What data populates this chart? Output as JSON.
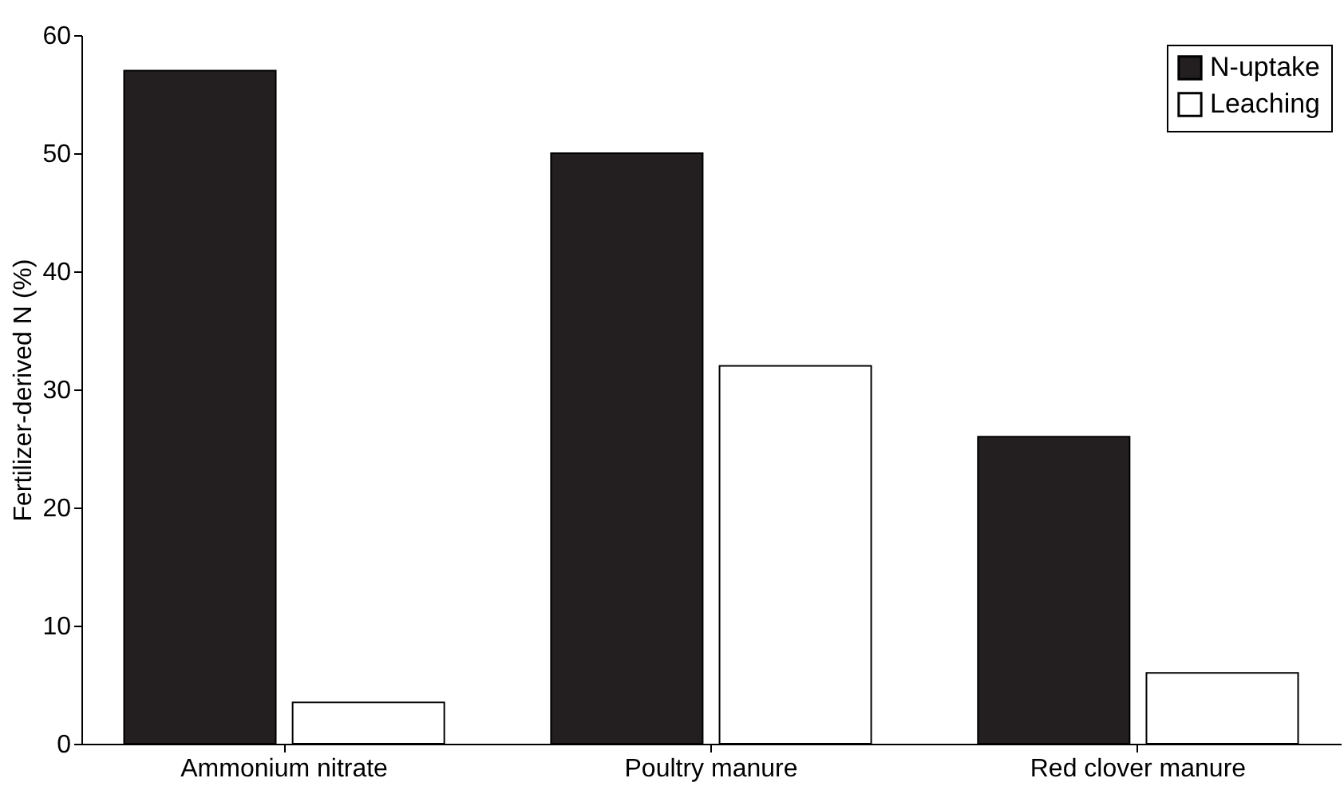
{
  "chart_data": {
    "type": "bar",
    "ylabel": "Fertilizer-derived N (%)",
    "categories": [
      "Ammonium nitrate",
      "Poultry manure",
      "Red clover manure"
    ],
    "series": [
      {
        "name": "N-uptake",
        "color": "#231f20",
        "values": [
          57,
          50,
          26
        ]
      },
      {
        "name": "Leaching",
        "color": "#ffffff",
        "values": [
          3.5,
          32,
          6
        ]
      }
    ],
    "ylim": [
      0,
      60
    ],
    "yticks": [
      0,
      10,
      20,
      30,
      40,
      50,
      60
    ],
    "grid": false,
    "legend": "top right"
  }
}
